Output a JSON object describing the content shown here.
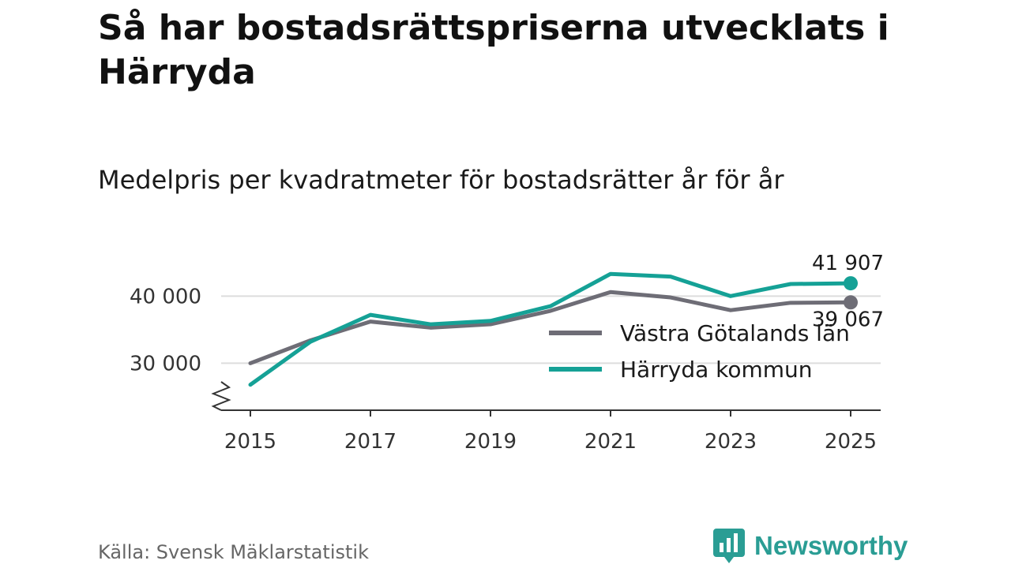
{
  "title": "Så har bostadsrättspriserna utvecklats i Härryda",
  "subtitle": "Medelpris per kvadratmeter för bostadsrätter år för år",
  "source": "Källa: Svensk Mäklarstatistik",
  "brand": {
    "name": "Newsworthy",
    "icon": "bar-chart-logo-icon",
    "color": "#2a9d94"
  },
  "chart_data": {
    "type": "line",
    "title": "Så har bostadsrättspriserna utvecklats i Härryda",
    "subtitle": "Medelpris per kvadratmeter för bostadsrätter år för år",
    "xlabel": "",
    "ylabel": "",
    "x": [
      2015,
      2016,
      2017,
      2018,
      2019,
      2020,
      2021,
      2022,
      2023,
      2024,
      2025
    ],
    "x_ticks": [
      "2015",
      "2017",
      "2019",
      "2021",
      "2023",
      "2025"
    ],
    "y_ticks": [
      {
        "value": 30000,
        "label": "30 000"
      },
      {
        "value": 40000,
        "label": "40 000"
      }
    ],
    "ylim": [
      23000,
      46500
    ],
    "axis_break": true,
    "grid": true,
    "legend_position": "inside-right",
    "series": [
      {
        "name": "Västra Götalands län",
        "color": "#6e6d76",
        "values": [
          30000,
          33400,
          36200,
          35300,
          35800,
          37800,
          40600,
          39800,
          37900,
          39000,
          39067
        ],
        "end_label": "39 067"
      },
      {
        "name": "Härryda kommun",
        "color": "#15a196",
        "values": [
          26800,
          33200,
          37200,
          35800,
          36300,
          38500,
          43300,
          42900,
          40000,
          41800,
          41907
        ],
        "end_label": "41 907"
      }
    ]
  }
}
